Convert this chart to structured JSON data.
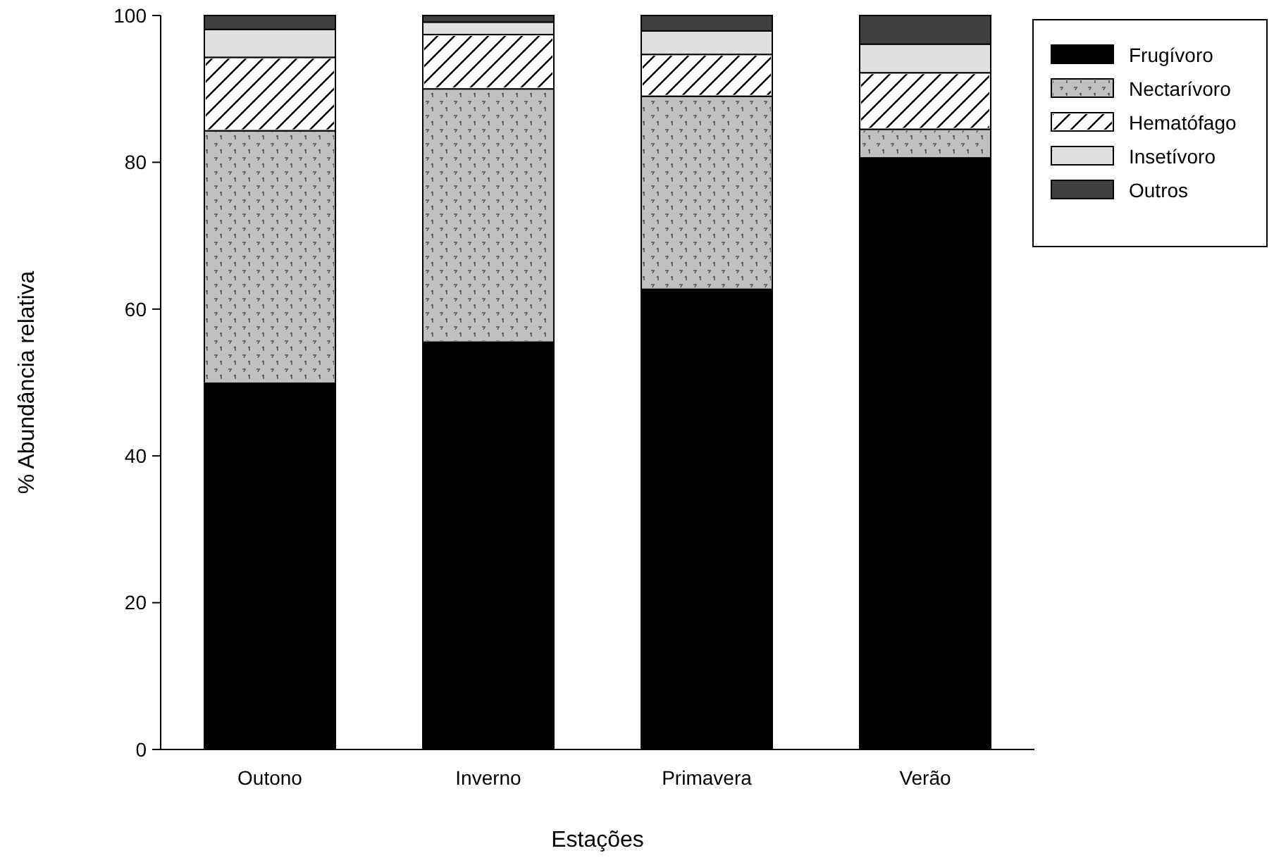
{
  "chart_data": {
    "type": "bar",
    "stacked": true,
    "xlabel": "Estações",
    "ylabel": "% Abundância relativa",
    "categories": [
      "Outono",
      "Inverno",
      "Primavera",
      "Verão"
    ],
    "ylim": [
      0,
      100
    ],
    "yticks": [
      0,
      20,
      40,
      60,
      80,
      100
    ],
    "legend": "top right",
    "grid": false,
    "series": [
      {
        "name": "Frugívoro",
        "color": "#000000",
        "values": [
          49.9,
          55.5,
          62.7,
          80.6
        ]
      },
      {
        "name": "Nectarívoro",
        "color": "#c0c0c0",
        "values": [
          34.4,
          34.5,
          26.3,
          3.9
        ]
      },
      {
        "name": "Hematófago",
        "color": "#ffffff",
        "values": [
          10.0,
          7.4,
          5.7,
          7.7
        ]
      },
      {
        "name": "Insetívoro",
        "color": "#e0e0e0",
        "values": [
          3.8,
          1.7,
          3.2,
          3.9
        ]
      },
      {
        "name": "Outros",
        "color": "#404040",
        "values": [
          1.9,
          0.9,
          2.1,
          3.9
        ]
      }
    ]
  }
}
